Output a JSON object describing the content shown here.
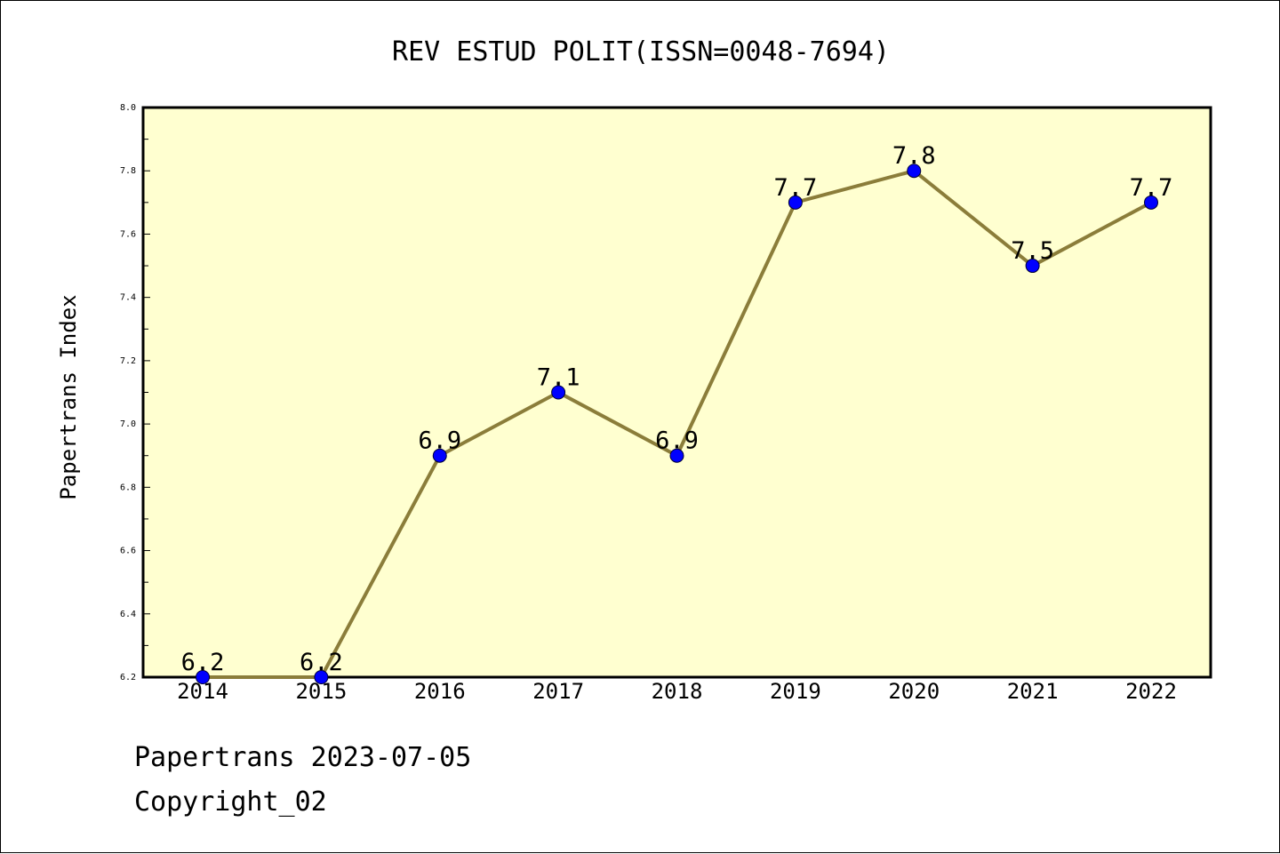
{
  "chart_data": {
    "type": "line",
    "title": "REV ESTUD POLIT(ISSN=0048-7694)",
    "ylabel": "Papertrans Index",
    "xlabel": "",
    "categories": [
      "2014",
      "2015",
      "2016",
      "2017",
      "2018",
      "2019",
      "2020",
      "2021",
      "2022"
    ],
    "values": [
      6.2,
      6.2,
      6.9,
      7.1,
      6.9,
      7.7,
      7.8,
      7.5,
      7.7
    ],
    "data_labels": [
      "6.2",
      "6.2",
      "6.9",
      "7.1",
      "6.9",
      "7.7",
      "7.8",
      "7.5",
      "7.7"
    ],
    "ylim": [
      6.2,
      8.0
    ],
    "yticks": [
      "6.2",
      "6.4",
      "6.6",
      "6.8",
      "7.0",
      "7.2",
      "7.4",
      "7.6",
      "7.8",
      "8.0"
    ],
    "grid": false,
    "colors": {
      "plot_background": "#ffffd0",
      "line": "#8b7d3a",
      "marker": "#0000ff"
    }
  },
  "footer": {
    "line1": "Papertrans 2023-07-05",
    "line2": "Copyright_02"
  }
}
